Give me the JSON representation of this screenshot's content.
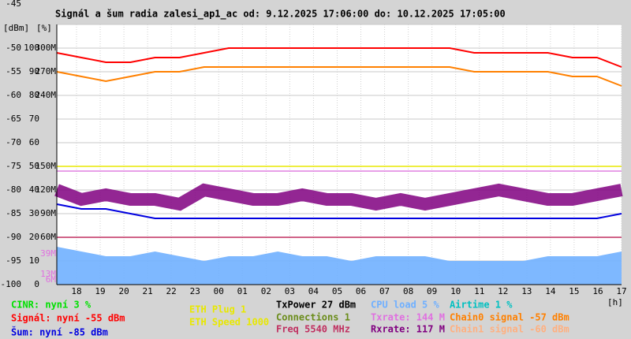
{
  "chart_data": {
    "type": "line",
    "title": "Signál a šum radia zalesi_ap1_ac od: 9.12.2025 17:06:00 do: 10.12.2025 17:05:00",
    "y_unit_labels": [
      "[dBm]",
      "[%]"
    ],
    "xlabel": "[h]",
    "ylim": [
      -100,
      -45
    ],
    "yticks": [
      -45,
      -50,
      -55,
      -60,
      -65,
      -70,
      -75,
      -80,
      -85,
      -90,
      -95,
      -100
    ],
    "pct_ticks": [
      {
        "value": -50,
        "label": "100"
      },
      {
        "value": -55,
        "label": "90"
      },
      {
        "value": -60,
        "label": "80"
      },
      {
        "value": -65,
        "label": "70"
      },
      {
        "value": -70,
        "label": "60"
      },
      {
        "value": -75,
        "label": "50"
      },
      {
        "value": -80,
        "label": "40"
      },
      {
        "value": -85,
        "label": "30"
      },
      {
        "value": -90,
        "label": "20"
      },
      {
        "value": -95,
        "label": "10"
      },
      {
        "value": -100,
        "label": "0"
      }
    ],
    "rate_ticks": [
      {
        "value": -50,
        "label": "300M"
      },
      {
        "value": -55,
        "label": "270M"
      },
      {
        "value": -60,
        "label": "240M"
      },
      {
        "value": -75,
        "label": "150M"
      },
      {
        "value": -80,
        "label": "120M"
      },
      {
        "value": -85,
        "label": "90M"
      },
      {
        "value": -90,
        "label": "60M"
      }
    ],
    "rate_marks": [
      {
        "value": -93.5,
        "label": "39M",
        "color": "#e070e0"
      },
      {
        "value": -97.8,
        "label": "13M",
        "color": "#e070e0"
      },
      {
        "value": -99,
        "label": "6M",
        "color": "#e070e0"
      }
    ],
    "categories": [
      "18",
      "19",
      "20",
      "21",
      "22",
      "23",
      "00",
      "01",
      "02",
      "03",
      "04",
      "05",
      "06",
      "07",
      "08",
      "09",
      "10",
      "11",
      "12",
      "13",
      "14",
      "15",
      "16",
      "17"
    ],
    "grid": true,
    "hlines": [
      {
        "value": -75,
        "color": "#e8e800"
      },
      {
        "value": -76,
        "color": "#e080e0"
      },
      {
        "value": -90,
        "color": "#c03060"
      }
    ],
    "series": [
      {
        "name": "CPU load",
        "color": "#70b0ff",
        "kind": "area",
        "values": [
          -92,
          -93,
          -94,
          -94,
          -93,
          -94,
          -95,
          -94,
          -94,
          -93,
          -94,
          -94,
          -95,
          -94,
          -94,
          -94,
          -95,
          -95,
          -95,
          -95,
          -94,
          -94,
          -94,
          -93
        ]
      },
      {
        "name": "Rxrate",
        "color": "#800080",
        "kind": "band",
        "values": [
          -80,
          -82,
          -81,
          -82,
          -82,
          -83,
          -80,
          -81,
          -82,
          -82,
          -81,
          -82,
          -82,
          -83,
          -82,
          -83,
          -82,
          -81,
          -80,
          -81,
          -82,
          -82,
          -81,
          -80
        ]
      },
      {
        "name": "Šum",
        "color": "#0000e0",
        "kind": "line",
        "values": [
          -83,
          -84,
          -84,
          -85,
          -86,
          -86,
          -86,
          -86,
          -86,
          -86,
          -86,
          -86,
          -86,
          -86,
          -86,
          -86,
          -86,
          -86,
          -86,
          -86,
          -86,
          -86,
          -86,
          -85
        ]
      },
      {
        "name": "Chain0",
        "color": "#ff8000",
        "kind": "line",
        "values": [
          -55,
          -56,
          -57,
          -56,
          -55,
          -55,
          -54,
          -54,
          -54,
          -54,
          -54,
          -54,
          -54,
          -54,
          -54,
          -54,
          -54,
          -55,
          -55,
          -55,
          -55,
          -56,
          -56,
          -58
        ]
      },
      {
        "name": "Signál",
        "color": "#ff0000",
        "kind": "line",
        "values": [
          -51,
          -52,
          -53,
          -53,
          -52,
          -52,
          -51,
          -50,
          -50,
          -50,
          -50,
          -50,
          -50,
          -50,
          -50,
          -50,
          -50,
          -51,
          -51,
          -51,
          -51,
          -52,
          -52,
          -54
        ]
      }
    ],
    "legend": [
      {
        "text": "CINR: nyní 3 %",
        "color": "#00e000"
      },
      {
        "text": "Signál: nyní -55 dBm",
        "color": "#ff0000"
      },
      {
        "text": "Šum: nyní -85 dBm",
        "color": "#0000e0"
      },
      {
        "text": "ETH Plug 1",
        "color": "#e8e800"
      },
      {
        "text": "ETH Speed 1000",
        "color": "#e8e800"
      },
      {
        "text": "TxPower 27 dBm",
        "color": "#000000"
      },
      {
        "text": "Connections 1",
        "color": "#6a8c1a"
      },
      {
        "text": "Freq 5540 MHz",
        "color": "#c03060"
      },
      {
        "text": "CPU load 5 %",
        "color": "#70b0ff"
      },
      {
        "text": "Txrate: 144 M",
        "color": "#e070e0"
      },
      {
        "text": "Rxrate: 117 M",
        "color": "#800080"
      },
      {
        "text": "Airtime 1 %",
        "color": "#00c0c0"
      },
      {
        "text": "Chain0 signal -57 dBm",
        "color": "#ff8000"
      },
      {
        "text": "Chain1 signal -60 dBm",
        "color": "#ffb080"
      }
    ]
  }
}
